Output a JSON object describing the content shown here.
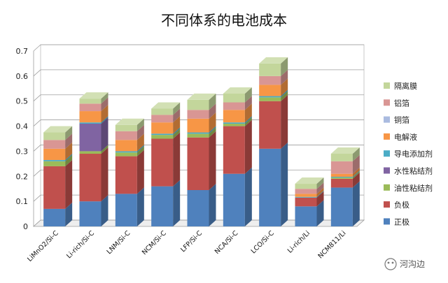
{
  "chart_data": {
    "type": "bar",
    "stacked": true,
    "three_d": true,
    "title": "不同体系的电池成本",
    "xlabel": "",
    "ylabel": "",
    "ylim": [
      0,
      0.7
    ],
    "yticks": [
      0,
      0.1,
      0.2,
      0.3,
      0.4,
      0.5,
      0.6,
      0.7
    ],
    "ytick_labels": [
      "0",
      "0.1",
      "0.2",
      "0.3",
      "0.4",
      "0.5",
      "0.6",
      "0.7"
    ],
    "grid": true,
    "legend_position": "right",
    "categories": [
      "LiMnO2/Si-C",
      "Li-rich/Si-C",
      "LNM/Si-C",
      "NCM/Si-C",
      "LFP/Si-C",
      "NCA/Si-C",
      "LCO/Si-C",
      "Li-rich/Li",
      "NCM811/Li"
    ],
    "series": [
      {
        "name": "正极",
        "color": "#4f81bd",
        "values": [
          0.07,
          0.1,
          0.13,
          0.16,
          0.145,
          0.21,
          0.31,
          0.08,
          0.155
        ]
      },
      {
        "name": "负极",
        "color": "#c0504d",
        "values": [
          0.17,
          0.19,
          0.15,
          0.19,
          0.21,
          0.19,
          0.19,
          0.035,
          0.035
        ]
      },
      {
        "name": "油性粘结剂",
        "color": "#9bbb59",
        "values": [
          0.02,
          0.01,
          0.015,
          0.015,
          0.015,
          0.01,
          0.015,
          0.0,
          0.005
        ]
      },
      {
        "name": "水性粘结剂",
        "color": "#8064a2",
        "values": [
          0.0,
          0.11,
          0.0,
          0.0,
          0.0,
          0.0,
          0.0,
          0.0,
          0.0
        ]
      },
      {
        "name": "导电添加剂",
        "color": "#4bacc6",
        "values": [
          0.005,
          0.005,
          0.005,
          0.005,
          0.005,
          0.005,
          0.005,
          0.003,
          0.003
        ]
      },
      {
        "name": "电解液",
        "color": "#f79646",
        "values": [
          0.045,
          0.045,
          0.045,
          0.045,
          0.055,
          0.05,
          0.045,
          0.012,
          0.012
        ]
      },
      {
        "name": "铜箔",
        "color": "#aabbe0",
        "values": [
          0.0,
          0.0,
          0.0,
          0.0,
          0.0,
          0.0,
          0.0,
          0.0,
          0.0
        ]
      },
      {
        "name": "铝箔",
        "color": "#d99694",
        "values": [
          0.035,
          0.03,
          0.035,
          0.03,
          0.035,
          0.03,
          0.035,
          0.02,
          0.05
        ]
      },
      {
        "name": "隔离膜",
        "color": "#c3d69b",
        "values": [
          0.03,
          0.02,
          0.025,
          0.025,
          0.04,
          0.035,
          0.05,
          0.02,
          0.03
        ]
      }
    ]
  },
  "watermark": "河沟边"
}
